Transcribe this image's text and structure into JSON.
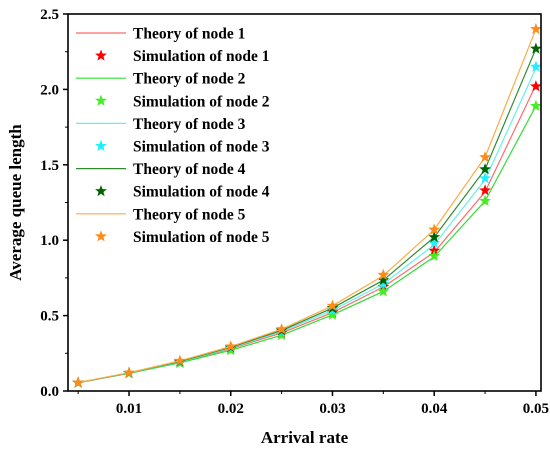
{
  "chart_data": {
    "type": "line",
    "title": "",
    "xlabel": "Arrival rate",
    "ylabel": "Average queue length",
    "xlim": [
      0.004,
      0.0505
    ],
    "ylim": [
      0.0,
      2.5
    ],
    "xticks": [
      "0.01",
      "0.02",
      "0.03",
      "0.04",
      "0.05"
    ],
    "yticks": [
      "0.0",
      "0.5",
      "1.0",
      "1.5",
      "2.0",
      "2.5"
    ],
    "grid": false,
    "legend_position": "top-left",
    "x": [
      0.005,
      0.01,
      0.015,
      0.02,
      0.025,
      0.03,
      0.035,
      0.04,
      0.045,
      0.05
    ],
    "series": [
      {
        "name": "Theory of node 1",
        "kind": "line",
        "color": "#ff6b6b",
        "values": [
          0.055,
          0.118,
          0.19,
          0.28,
          0.385,
          0.52,
          0.69,
          0.92,
          1.32,
          2.03
        ]
      },
      {
        "name": "Simulation of node 1",
        "kind": "marker",
        "color": "#ff0000",
        "values": [
          0.055,
          0.118,
          0.19,
          0.28,
          0.385,
          0.52,
          0.69,
          0.93,
          1.33,
          2.02
        ]
      },
      {
        "name": "Theory of node 2",
        "kind": "line",
        "color": "#33dd33",
        "values": [
          0.055,
          0.117,
          0.187,
          0.27,
          0.37,
          0.505,
          0.66,
          0.89,
          1.26,
          1.89
        ]
      },
      {
        "name": "Simulation of node 2",
        "kind": "marker",
        "color": "#44ee22",
        "values": [
          0.055,
          0.117,
          0.185,
          0.27,
          0.37,
          0.505,
          0.66,
          0.895,
          1.26,
          1.89
        ]
      },
      {
        "name": "Theory of node 3",
        "kind": "line",
        "color": "#66eeee",
        "values": [
          0.055,
          0.119,
          0.193,
          0.285,
          0.395,
          0.535,
          0.71,
          0.97,
          1.4,
          2.14
        ]
      },
      {
        "name": "Simulation of node 3",
        "kind": "marker",
        "color": "#22eeff",
        "values": [
          0.055,
          0.119,
          0.193,
          0.285,
          0.395,
          0.535,
          0.71,
          0.98,
          1.41,
          2.15
        ]
      },
      {
        "name": "Theory of node 4",
        "kind": "line",
        "color": "#2e8b2e",
        "values": [
          0.055,
          0.12,
          0.196,
          0.29,
          0.402,
          0.55,
          0.735,
          1.02,
          1.47,
          2.27
        ]
      },
      {
        "name": "Simulation of node 4",
        "kind": "marker",
        "color": "#006400",
        "values": [
          0.055,
          0.12,
          0.196,
          0.29,
          0.402,
          0.55,
          0.735,
          1.02,
          1.47,
          2.27
        ]
      },
      {
        "name": "Theory of node 5",
        "kind": "line",
        "color": "#ffaa44",
        "values": [
          0.056,
          0.121,
          0.2,
          0.295,
          0.41,
          0.565,
          0.765,
          1.07,
          1.55,
          2.4
        ]
      },
      {
        "name": "Simulation of node 5",
        "kind": "marker",
        "color": "#ff8c1a",
        "values": [
          0.056,
          0.121,
          0.2,
          0.295,
          0.41,
          0.565,
          0.77,
          1.07,
          1.55,
          2.4
        ]
      }
    ]
  }
}
